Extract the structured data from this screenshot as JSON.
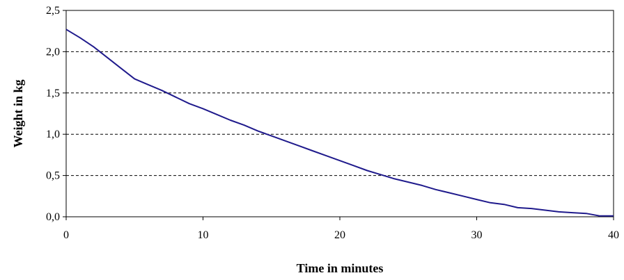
{
  "chart_data": {
    "type": "line",
    "title": "",
    "xlabel": "Time in minutes",
    "ylabel": "Weight in kg",
    "xlim": [
      0,
      40
    ],
    "ylim": [
      0,
      2.5
    ],
    "x_ticks": [
      {
        "value": 0,
        "label": "0"
      },
      {
        "value": 10,
        "label": "10"
      },
      {
        "value": 20,
        "label": "20"
      },
      {
        "value": 30,
        "label": "30"
      },
      {
        "value": 40,
        "label": "40"
      }
    ],
    "y_ticks": [
      {
        "value": 0,
        "label": "0,0"
      },
      {
        "value": 0.5,
        "label": "0,5"
      },
      {
        "value": 1.0,
        "label": "1,0"
      },
      {
        "value": 1.5,
        "label": "1,5"
      },
      {
        "value": 2.0,
        "label": "2,0"
      },
      {
        "value": 2.5,
        "label": "2,5"
      }
    ],
    "grid": "horizontal dashed",
    "legend": "none",
    "series": [
      {
        "color": "#1f1a8c",
        "points": [
          [
            0,
            2.27
          ],
          [
            1,
            2.17
          ],
          [
            2,
            2.06
          ],
          [
            3,
            1.93
          ],
          [
            4,
            1.8
          ],
          [
            5,
            1.67
          ],
          [
            6,
            1.6
          ],
          [
            7,
            1.53
          ],
          [
            8,
            1.45
          ],
          [
            9,
            1.37
          ],
          [
            10,
            1.31
          ],
          [
            11,
            1.24
          ],
          [
            12,
            1.17
          ],
          [
            13,
            1.11
          ],
          [
            14,
            1.04
          ],
          [
            15,
            0.98
          ],
          [
            16,
            0.92
          ],
          [
            17,
            0.86
          ],
          [
            18,
            0.8
          ],
          [
            19,
            0.74
          ],
          [
            20,
            0.68
          ],
          [
            21,
            0.62
          ],
          [
            22,
            0.56
          ],
          [
            23,
            0.51
          ],
          [
            24,
            0.46
          ],
          [
            25,
            0.42
          ],
          [
            26,
            0.38
          ],
          [
            27,
            0.33
          ],
          [
            28,
            0.29
          ],
          [
            29,
            0.25
          ],
          [
            30,
            0.21
          ],
          [
            31,
            0.17
          ],
          [
            32,
            0.15
          ],
          [
            33,
            0.11
          ],
          [
            34,
            0.1
          ],
          [
            35,
            0.08
          ],
          [
            36,
            0.06
          ],
          [
            37,
            0.05
          ],
          [
            38,
            0.04
          ],
          [
            39,
            0.01
          ],
          [
            40,
            0.01
          ]
        ]
      }
    ]
  }
}
